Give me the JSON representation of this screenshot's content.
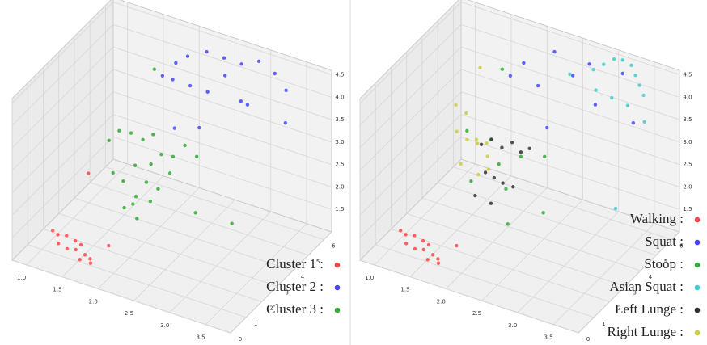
{
  "chart_data": [
    {
      "type": "scatter3d",
      "legend": "lower right",
      "xlim": [
        0.8,
        3.85
      ],
      "ylim": [
        0,
        6.5
      ],
      "zlim": [
        1.0,
        4.6
      ],
      "xticks": [
        {
          "value": 1,
          "label": "1.0"
        },
        1.5,
        {
          "value": 2,
          "label": "2.0"
        },
        2.5,
        {
          "value": 3,
          "label": "3.0"
        },
        3.5
      ],
      "yticks": [
        0,
        1,
        2,
        3,
        4,
        5,
        6
      ],
      "zticks": [
        1.5,
        {
          "value": 2,
          "label": "2.0"
        },
        2.5,
        {
          "value": 3,
          "label": "3.0"
        },
        3.5,
        {
          "value": 4,
          "label": "4.0"
        },
        4.5
      ],
      "series": [
        {
          "name": "Cluster 1 :",
          "color": "#f44",
          "x": [
            1.15,
            1.2,
            1.25,
            1.3,
            1.35,
            1.4,
            1.45,
            1.5,
            1.55,
            1.6,
            1.65,
            1.7,
            1.8,
            1.3
          ],
          "y": [
            1.0,
            1.1,
            0.9,
            1.2,
            1.0,
            1.3,
            1.1,
            1.2,
            0.9,
            1.0,
            1.1,
            0.9,
            1.6,
            2.6
          ],
          "z": [
            1.5,
            1.4,
            1.3,
            1.4,
            1.2,
            1.3,
            1.2,
            1.3,
            1.1,
            1.2,
            1.1,
            1.1,
            1.3,
            2.3
          ]
        },
        {
          "name": "Cluster 2 :",
          "color": "#44f",
          "x": [
            2.0,
            2.1,
            2.3,
            2.5,
            2.7,
            2.9,
            3.1,
            3.3,
            1.9,
            2.0,
            2.2,
            2.4,
            2.6,
            2.8,
            3.0,
            3.4,
            2.5,
            2.2
          ],
          "y": [
            5.0,
            5.3,
            5.6,
            5.8,
            6.0,
            6.2,
            6.3,
            6.1,
            4.6,
            4.8,
            5.0,
            5.2,
            5.4,
            5.5,
            5.0,
            5.6,
            4.2,
            4.0
          ],
          "z": [
            4.3,
            4.4,
            4.5,
            4.4,
            4.3,
            4.4,
            4.2,
            4.0,
            4.1,
            4.0,
            3.9,
            3.8,
            4.2,
            3.7,
            3.9,
            3.5,
            3.4,
            3.3
          ]
        },
        {
          "name": "Cluster 3 :",
          "color": "#3a3",
          "x": [
            1.5,
            1.6,
            1.7,
            1.8,
            1.9,
            2.0,
            2.1,
            2.2,
            2.3,
            1.6,
            1.7,
            1.8,
            1.9,
            2.0,
            2.1,
            2.2,
            1.8,
            1.9,
            2.0,
            2.1,
            2.4,
            2.6,
            1.7,
            3.0
          ],
          "y": [
            3.0,
            3.2,
            3.5,
            3.8,
            4.0,
            3.4,
            3.6,
            3.9,
            4.2,
            2.8,
            3.0,
            3.3,
            2.9,
            3.1,
            3.4,
            3.7,
            2.6,
            2.7,
            2.5,
            2.9,
            4.5,
            3.5,
            5.0,
            4.0
          ],
          "z": [
            3.0,
            3.2,
            3.1,
            2.9,
            3.0,
            2.6,
            2.8,
            2.7,
            2.9,
            2.4,
            2.2,
            2.5,
            2.0,
            2.3,
            2.1,
            2.4,
            1.8,
            1.9,
            1.7,
            2.0,
            2.6,
            1.8,
            4.0,
            1.6
          ]
        }
      ]
    },
    {
      "type": "scatter3d",
      "legend": "lower right",
      "xlim": [
        0.8,
        3.85
      ],
      "ylim": [
        0,
        6.5
      ],
      "zlim": [
        1.0,
        4.6
      ],
      "xticks": [
        {
          "value": 1,
          "label": "1.0"
        },
        1.5,
        {
          "value": 2,
          "label": "2.0"
        },
        2.5,
        {
          "value": 3,
          "label": "3.0"
        },
        3.5
      ],
      "yticks": [
        0,
        1,
        2,
        3,
        4,
        5,
        6
      ],
      "zticks": [
        1.5,
        {
          "value": 2,
          "label": "2.0"
        },
        2.5,
        {
          "value": 3,
          "label": "3.0"
        },
        3.5,
        {
          "value": 4,
          "label": "4.0"
        },
        4.5
      ],
      "series": [
        {
          "name": "Walking :",
          "color": "#f44",
          "x": [
            1.15,
            1.2,
            1.25,
            1.3,
            1.35,
            1.4,
            1.45,
            1.5,
            1.55,
            1.6,
            1.65,
            1.7,
            1.8
          ],
          "y": [
            1.0,
            1.1,
            0.9,
            1.2,
            1.0,
            1.3,
            1.1,
            1.2,
            0.9,
            1.0,
            1.1,
            0.9,
            1.6
          ],
          "z": [
            1.5,
            1.4,
            1.3,
            1.4,
            1.2,
            1.3,
            1.2,
            1.3,
            1.1,
            1.2,
            1.1,
            1.1,
            1.3
          ]
        },
        {
          "name": "Squat :",
          "color": "#44f",
          "x": [
            2.0,
            2.3,
            2.7,
            3.1,
            1.9,
            2.2,
            2.6,
            3.0,
            3.4,
            2.5
          ],
          "y": [
            5.0,
            5.6,
            6.0,
            6.3,
            4.6,
            5.0,
            5.4,
            5.0,
            5.6,
            4.2
          ],
          "z": [
            4.3,
            4.5,
            4.3,
            4.2,
            4.1,
            3.9,
            4.2,
            3.9,
            3.5,
            3.4
          ]
        },
        {
          "name": "Stoop :",
          "color": "#3a3",
          "x": [
            1.6,
            1.8,
            2.0,
            2.2,
            1.7,
            2.1,
            2.4,
            2.6,
            1.7,
            2.3
          ],
          "y": [
            3.2,
            3.8,
            3.4,
            3.9,
            3.0,
            3.4,
            4.5,
            3.5,
            5.0,
            2.6
          ],
          "z": [
            3.2,
            2.9,
            2.6,
            2.7,
            2.2,
            2.1,
            2.6,
            1.8,
            4.0,
            1.7
          ]
        },
        {
          "name": "Asian Squat :",
          "color": "#4cc",
          "x": [
            2.8,
            2.9,
            3.0,
            3.1,
            3.2,
            3.3,
            3.4,
            3.5,
            2.9,
            3.1,
            3.3,
            3.6,
            2.6,
            3.5
          ],
          "y": [
            5.8,
            6.0,
            6.2,
            6.3,
            6.4,
            6.2,
            6.0,
            5.8,
            5.5,
            5.6,
            5.7,
            5.4,
            5.2,
            4.0
          ],
          "z": [
            4.3,
            4.4,
            4.5,
            4.5,
            4.4,
            4.3,
            4.2,
            4.1,
            4.0,
            3.9,
            3.8,
            3.7,
            4.3,
            2.2
          ]
        },
        {
          "name": "Left Lunge :",
          "color": "#333",
          "x": [
            1.8,
            1.9,
            2.0,
            2.1,
            2.2,
            2.3,
            1.9,
            2.0,
            2.1,
            2.2,
            1.8,
            2.0
          ],
          "y": [
            3.2,
            3.4,
            3.6,
            3.8,
            3.9,
            4.0,
            3.0,
            3.1,
            3.2,
            3.4,
            2.8,
            2.9
          ],
          "z": [
            3.0,
            3.1,
            2.9,
            3.0,
            2.8,
            2.9,
            2.5,
            2.4,
            2.3,
            2.2,
            2.0,
            1.9
          ]
        },
        {
          "name": "Right Lunge :",
          "color": "#cc4",
          "x": [
            1.4,
            1.5,
            1.5,
            1.6,
            1.6,
            1.7,
            1.7,
            1.8,
            1.9,
            1.5,
            1.6,
            1.8
          ],
          "y": [
            3.4,
            3.6,
            3.0,
            3.2,
            3.8,
            3.4,
            4.0,
            3.6,
            3.2,
            4.5,
            2.8,
            3.0
          ],
          "z": [
            3.6,
            3.4,
            3.2,
            3.0,
            2.8,
            2.9,
            2.7,
            2.6,
            2.5,
            4.1,
            2.6,
            2.4
          ]
        }
      ]
    }
  ]
}
